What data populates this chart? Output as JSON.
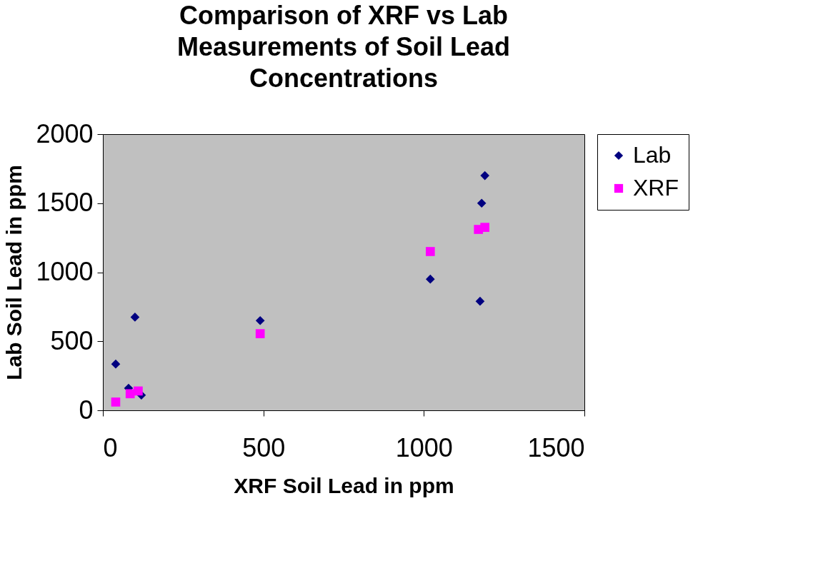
{
  "chart_data": {
    "type": "scatter",
    "title": "Comparison of XRF vs Lab Measurements of Soil Lead Concentrations",
    "xlabel": "XRF Soil Lead in ppm",
    "ylabel": "Lab Soil Lead in ppm",
    "xlim": [
      0,
      1500
    ],
    "xticks": [
      0,
      500,
      1000,
      1500
    ],
    "ylim": [
      0,
      2000
    ],
    "yticks": [
      0,
      500,
      1000,
      1500,
      2000
    ],
    "grid": false,
    "legend": "right",
    "series": [
      {
        "name": "Lab",
        "color": "#000080",
        "marker": "diamond",
        "x": [
          40,
          100,
          80,
          120,
          490,
          1190,
          1180,
          1020,
          1175
        ],
        "values": [
          335,
          675,
          160,
          110,
          650,
          1700,
          1500,
          950,
          790
        ]
      },
      {
        "name": "XRF",
        "color": "#ff00ff",
        "marker": "square",
        "x": [
          40,
          85,
          110,
          490,
          1020,
          1170,
          1190
        ],
        "values": [
          60,
          120,
          140,
          555,
          1150,
          1310,
          1325
        ]
      }
    ]
  }
}
